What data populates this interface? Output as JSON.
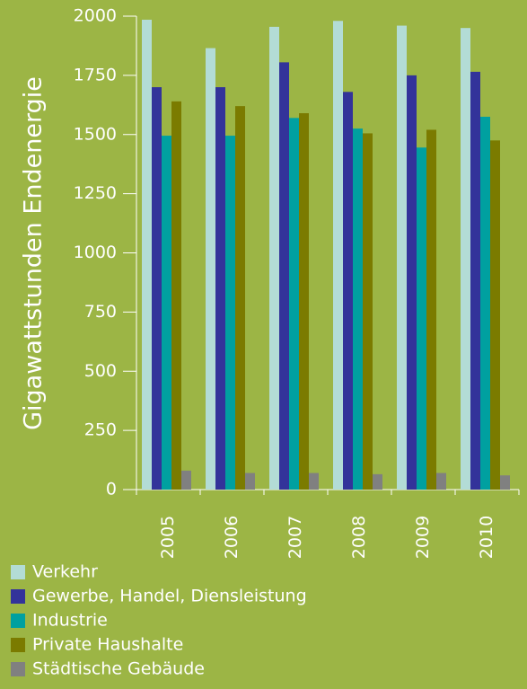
{
  "chart_data": {
    "type": "bar",
    "ylabel": "Gigawattstunden Endenergie",
    "categories": [
      "2005",
      "2006",
      "2007",
      "2008",
      "2009",
      "2010"
    ],
    "series": [
      {
        "name": "Verkehr",
        "color": "#b3dcd6",
        "values": [
          1985,
          1865,
          1955,
          1980,
          1960,
          1950
        ]
      },
      {
        "name": "Gewerbe, Handel, Diensleistung",
        "color": "#33339a",
        "values": [
          1700,
          1700,
          1805,
          1680,
          1750,
          1765
        ]
      },
      {
        "name": "Industrie",
        "color": "#00a0a0",
        "values": [
          1495,
          1495,
          1570,
          1525,
          1445,
          1575
        ]
      },
      {
        "name": "Private Haushalte",
        "color": "#7b7b00",
        "values": [
          1640,
          1620,
          1590,
          1505,
          1520,
          1475
        ]
      },
      {
        "name": "Städtische Gebäude",
        "color": "#808080",
        "values": [
          80,
          70,
          70,
          65,
          70,
          60
        ]
      }
    ],
    "ylim": [
      0,
      2000
    ],
    "yticks": [
      0,
      250,
      500,
      750,
      1000,
      1250,
      1500,
      1750,
      2000
    ]
  }
}
